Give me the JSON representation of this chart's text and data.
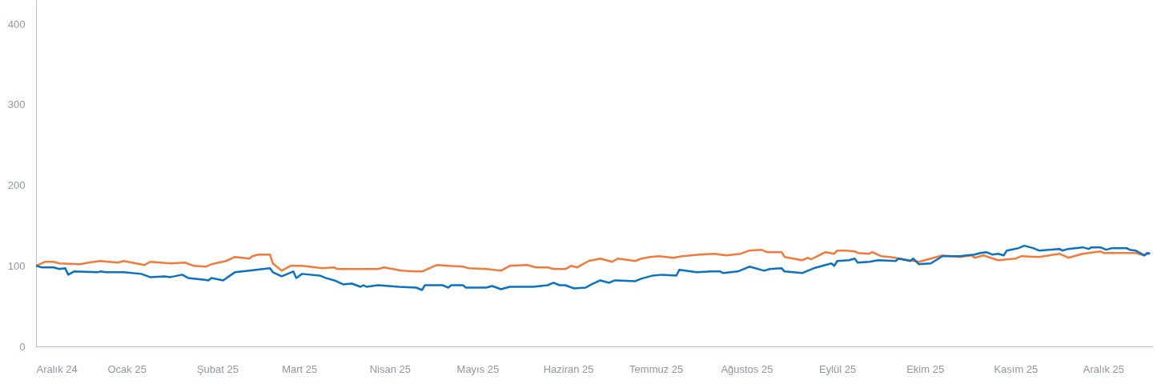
{
  "chart_data": {
    "type": "line",
    "xlim": [
      "2024-12-01",
      "2025-12-18"
    ],
    "xticks": [
      {
        "value": "2024-12-01",
        "label": "Aralık 24"
      },
      {
        "value": "2025-01-01",
        "label": "Ocak 25"
      },
      {
        "value": "2025-02-01",
        "label": "Şubat 25"
      },
      {
        "value": "2025-03-01",
        "label": "Mart 25"
      },
      {
        "value": "2025-04-01",
        "label": "Nisan 25"
      },
      {
        "value": "2025-05-01",
        "label": "Mayıs 25"
      },
      {
        "value": "2025-06-01",
        "label": "Haziran 25"
      },
      {
        "value": "2025-07-01",
        "label": "Temmuz 25"
      },
      {
        "value": "2025-08-01",
        "label": "Ağustos 25"
      },
      {
        "value": "2025-09-01",
        "label": "Eylül 25"
      },
      {
        "value": "2025-10-01",
        "label": "Ekim 25"
      },
      {
        "value": "2025-11-01",
        "label": "Kasım 25"
      },
      {
        "value": "2025-12-01",
        "label": "Aralık 25"
      }
    ],
    "ylim": [
      0,
      430
    ],
    "yticks": [
      0,
      100,
      200,
      300,
      400
    ],
    "series": [
      {
        "color": "#f37a3a",
        "x": [
          "2024-12-01",
          "2024-12-04",
          "2024-12-07",
          "2024-12-09",
          "2024-12-16",
          "2024-12-19",
          "2024-12-23",
          "2024-12-29",
          "2024-12-31",
          "2025-01-07",
          "2025-01-09",
          "2025-01-16",
          "2025-01-21",
          "2025-01-24",
          "2025-01-28",
          "2025-01-30",
          "2025-02-04",
          "2025-02-07",
          "2025-02-12",
          "2025-02-13",
          "2025-02-15",
          "2025-02-19",
          "2025-02-20",
          "2025-02-23",
          "2025-02-26",
          "2025-03-02",
          "2025-03-09",
          "2025-03-13",
          "2025-03-14",
          "2025-03-24",
          "2025-03-28",
          "2025-03-30",
          "2025-04-05",
          "2025-04-10",
          "2025-04-12",
          "2025-04-17",
          "2025-04-21",
          "2025-04-26",
          "2025-04-28",
          "2025-05-04",
          "2025-05-09",
          "2025-05-12",
          "2025-05-18",
          "2025-05-21",
          "2025-05-25",
          "2025-05-27",
          "2025-05-31",
          "2025-06-02",
          "2025-06-04",
          "2025-06-08",
          "2025-06-12",
          "2025-06-16",
          "2025-06-18",
          "2025-06-24",
          "2025-06-26",
          "2025-06-29",
          "2025-07-02",
          "2025-07-07",
          "2025-07-10",
          "2025-07-16",
          "2025-07-21",
          "2025-07-25",
          "2025-07-30",
          "2025-08-02",
          "2025-08-06",
          "2025-08-08",
          "2025-08-13",
          "2025-08-14",
          "2025-08-20",
          "2025-08-22",
          "2025-08-23",
          "2025-08-28",
          "2025-08-31",
          "2025-09-01",
          "2025-09-04",
          "2025-09-07",
          "2025-09-08",
          "2025-09-12",
          "2025-09-13",
          "2025-09-16",
          "2025-09-19",
          "2025-09-29",
          "2025-10-03",
          "2025-10-07",
          "2025-10-13",
          "2025-10-17",
          "2025-10-18",
          "2025-10-21",
          "2025-10-26",
          "2025-11-01",
          "2025-11-03",
          "2025-11-09",
          "2025-11-16",
          "2025-11-19",
          "2025-11-24",
          "2025-11-30",
          "2025-12-01",
          "2025-12-12",
          "2025-12-15",
          "2025-12-17"
        ],
        "values": [
          100,
          105,
          105,
          103,
          102,
          104,
          106,
          104,
          106,
          101,
          105,
          103,
          104,
          100,
          99,
          102,
          106,
          111,
          109,
          112,
          114,
          114,
          103,
          94,
          100,
          100,
          97,
          98,
          96,
          96,
          96,
          98,
          94,
          93,
          93,
          101,
          100,
          99,
          97,
          96,
          94,
          100,
          101,
          98,
          98,
          96,
          96,
          100,
          98,
          106,
          109,
          105,
          109,
          106,
          109,
          111,
          112,
          110,
          112,
          114,
          115,
          113,
          115,
          119,
          120,
          117,
          117,
          111,
          107,
          110,
          108,
          117,
          115,
          119,
          119,
          118,
          116,
          115,
          117,
          112,
          111,
          105,
          109,
          113,
          111,
          113,
          110,
          113,
          107,
          109,
          112,
          111,
          115,
          110,
          115,
          118,
          116,
          116,
          113,
          116
        ]
      },
      {
        "color": "#0a72c4",
        "x": [
          "2024-12-01",
          "2024-12-03",
          "2024-12-07",
          "2024-12-09",
          "2024-12-11",
          "2024-12-12",
          "2024-12-14",
          "2024-12-22",
          "2024-12-23",
          "2024-12-25",
          "2024-12-31",
          "2025-01-06",
          "2025-01-09",
          "2025-01-14",
          "2025-01-16",
          "2025-01-20",
          "2025-01-22",
          "2025-01-27",
          "2025-01-29",
          "2025-01-30",
          "2025-02-03",
          "2025-02-05",
          "2025-02-07",
          "2025-02-12",
          "2025-02-19",
          "2025-02-20",
          "2025-02-23",
          "2025-02-25",
          "2025-02-27",
          "2025-02-28",
          "2025-03-02",
          "2025-03-08",
          "2025-03-10",
          "2025-03-13",
          "2025-03-16",
          "2025-03-19",
          "2025-03-22",
          "2025-03-23",
          "2025-03-24",
          "2025-03-28",
          "2025-04-04",
          "2025-04-10",
          "2025-04-12",
          "2025-04-13",
          "2025-04-19",
          "2025-04-21",
          "2025-04-22",
          "2025-04-26",
          "2025-04-27",
          "2025-05-04",
          "2025-05-06",
          "2025-05-09",
          "2025-05-12",
          "2025-05-20",
          "2025-05-25",
          "2025-05-27",
          "2025-05-29",
          "2025-05-31",
          "2025-06-03",
          "2025-06-07",
          "2025-06-09",
          "2025-06-12",
          "2025-06-15",
          "2025-06-17",
          "2025-06-24",
          "2025-06-26",
          "2025-06-30",
          "2025-07-03",
          "2025-07-08",
          "2025-07-09",
          "2025-07-15",
          "2025-07-20",
          "2025-07-23",
          "2025-07-24",
          "2025-07-29",
          "2025-08-02",
          "2025-08-07",
          "2025-08-09",
          "2025-08-13",
          "2025-08-14",
          "2025-08-20",
          "2025-08-24",
          "2025-08-30",
          "2025-08-31",
          "2025-09-01",
          "2025-09-05",
          "2025-09-07",
          "2025-09-08",
          "2025-09-12",
          "2025-09-15",
          "2025-09-21",
          "2025-09-22",
          "2025-09-26",
          "2025-09-27",
          "2025-09-29",
          "2025-10-03",
          "2025-10-07",
          "2025-10-13",
          "2025-10-15",
          "2025-10-18",
          "2025-10-20",
          "2025-10-22",
          "2025-10-24",
          "2025-10-26",
          "2025-10-28",
          "2025-10-29",
          "2025-11-02",
          "2025-11-04",
          "2025-11-07",
          "2025-11-09",
          "2025-11-16",
          "2025-11-17",
          "2025-11-19",
          "2025-11-24",
          "2025-11-26",
          "2025-11-27",
          "2025-11-30",
          "2025-12-02",
          "2025-12-04",
          "2025-12-09",
          "2025-12-10",
          "2025-12-12",
          "2025-12-15",
          "2025-12-16",
          "2025-12-17"
        ],
        "values": [
          100,
          98,
          98,
          96,
          97,
          89,
          93,
          92,
          93,
          92,
          92,
          90,
          86,
          87,
          86,
          89,
          85,
          83,
          82,
          85,
          82,
          87,
          92,
          94,
          97,
          92,
          87,
          90,
          93,
          85,
          90,
          88,
          85,
          82,
          77,
          78,
          74,
          76,
          74,
          76,
          74,
          73,
          70,
          76,
          76,
          73,
          76,
          76,
          73,
          73,
          75,
          71,
          74,
          74,
          76,
          79,
          76,
          76,
          72,
          73,
          77,
          82,
          79,
          82,
          81,
          84,
          88,
          89,
          88,
          95,
          92,
          93,
          93,
          91,
          93,
          99,
          94,
          96,
          97,
          93,
          91,
          97,
          103,
          100,
          106,
          107,
          109,
          104,
          105,
          107,
          106,
          109,
          106,
          109,
          102,
          103,
          112,
          112,
          113,
          114,
          116,
          117,
          114,
          115,
          113,
          119,
          122,
          125,
          122,
          119,
          121,
          119,
          121,
          123,
          121,
          123,
          123,
          120,
          122,
          122,
          120,
          119,
          113,
          116,
          115
        ]
      }
    ]
  }
}
